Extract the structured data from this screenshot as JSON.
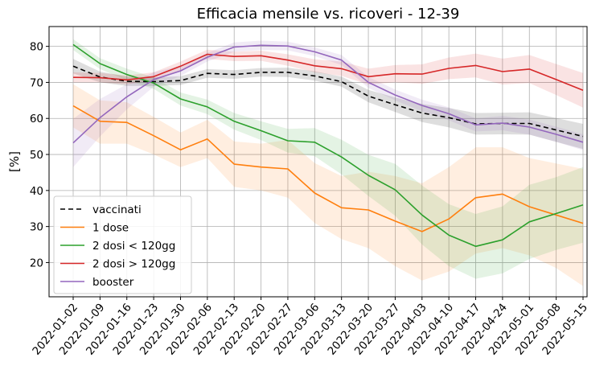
{
  "chart_data": {
    "type": "line",
    "title": "Efficacia mensile vs. ricoveri - 12-39",
    "xlabel": "",
    "ylabel": "[%]",
    "ylim": [
      10.5,
      85.5
    ],
    "yticks": [
      20,
      30,
      40,
      50,
      60,
      70,
      80
    ],
    "grid": true,
    "legend_position": "lower-left",
    "x": [
      "2022-01-02",
      "2022-01-09",
      "2022-01-16",
      "2022-01-23",
      "2022-01-30",
      "2022-02-06",
      "2022-02-13",
      "2022-02-20",
      "2022-02-27",
      "2022-03-06",
      "2022-03-13",
      "2022-03-20",
      "2022-03-27",
      "2022-04-03",
      "2022-04-10",
      "2022-04-17",
      "2022-04-24",
      "2022-05-01",
      "2022-05-08",
      "2022-05-15"
    ],
    "series": [
      {
        "name": "vaccinati",
        "color": "#000000",
        "dash": true,
        "values": [
          74.5,
          71.5,
          70.3,
          70.2,
          70.5,
          72.5,
          72.2,
          72.8,
          72.8,
          71.8,
          70.2,
          66.2,
          63.8,
          61.5,
          60.2,
          58.5,
          58.6,
          58.6,
          56.8,
          55.0
        ],
        "lower": [
          72.5,
          70.0,
          69.0,
          69.0,
          69.3,
          71.3,
          71.0,
          71.6,
          71.5,
          70.5,
          68.8,
          64.5,
          61.8,
          59.0,
          57.5,
          55.5,
          55.6,
          55.5,
          53.5,
          51.5
        ],
        "upper": [
          76.5,
          73.0,
          71.6,
          71.4,
          71.7,
          73.7,
          73.4,
          74.0,
          74.1,
          73.1,
          71.6,
          67.9,
          65.8,
          64.0,
          62.9,
          61.5,
          61.6,
          61.7,
          60.1,
          58.5
        ]
      },
      {
        "name": "1 dose",
        "color": "#ff7f0e",
        "dash": false,
        "values": [
          63.5,
          59.2,
          58.9,
          55.2,
          51.3,
          54.3,
          47.3,
          46.5,
          46.0,
          39.3,
          35.2,
          34.6,
          31.5,
          28.6,
          32.1,
          38.0,
          39.0,
          35.5,
          33.2,
          30.9
        ],
        "lower": [
          57.5,
          53.0,
          53.0,
          50.0,
          46.5,
          49.0,
          41.0,
          40.0,
          38.0,
          31.0,
          26.5,
          24.0,
          19.0,
          15.0,
          17.5,
          22.5,
          24.0,
          22.0,
          18.5,
          13.5
        ],
        "upper": [
          69.5,
          65.0,
          64.5,
          60.4,
          56.1,
          59.6,
          53.6,
          53.0,
          54.0,
          47.6,
          44.0,
          45.2,
          44.0,
          42.0,
          46.5,
          52.0,
          52.0,
          49.0,
          47.5,
          46.0
        ]
      },
      {
        "name": "2 dosi < 120gg",
        "color": "#2ca02c",
        "dash": false,
        "values": [
          80.5,
          75.2,
          72.2,
          69.8,
          65.4,
          63.2,
          59.2,
          56.6,
          53.8,
          53.4,
          49.3,
          44.2,
          40.2,
          33.2,
          27.6,
          24.5,
          26.3,
          31.3,
          33.6,
          36.0
        ],
        "lower": [
          79.0,
          73.7,
          70.6,
          68.2,
          63.6,
          61.2,
          56.9,
          54.0,
          50.5,
          49.5,
          44.5,
          38.5,
          33.0,
          25.0,
          19.0,
          15.5,
          17.0,
          21.0,
          23.5,
          25.5
        ],
        "upper": [
          82.0,
          76.7,
          73.8,
          71.4,
          67.2,
          65.2,
          61.5,
          59.2,
          57.1,
          57.3,
          54.1,
          49.9,
          47.4,
          41.4,
          36.2,
          33.5,
          35.6,
          41.6,
          43.7,
          46.5
        ]
      },
      {
        "name": "2 dosi > 120gg",
        "color": "#d62728",
        "dash": false,
        "values": [
          71.4,
          71.3,
          70.7,
          71.6,
          74.5,
          77.8,
          77.2,
          77.4,
          76.2,
          74.6,
          73.8,
          71.6,
          72.4,
          72.3,
          73.9,
          74.7,
          73.0,
          73.7,
          70.8,
          67.8
        ],
        "lower": [
          70.0,
          70.0,
          69.5,
          70.4,
          73.2,
          76.5,
          75.9,
          76.0,
          74.6,
          72.8,
          71.8,
          69.4,
          70.0,
          69.6,
          70.9,
          71.4,
          69.4,
          69.8,
          66.5,
          63.0
        ],
        "upper": [
          72.8,
          72.6,
          71.9,
          72.8,
          75.8,
          79.1,
          78.5,
          78.8,
          77.8,
          76.4,
          75.8,
          73.8,
          74.8,
          75.0,
          76.9,
          78.0,
          76.6,
          77.6,
          75.1,
          72.6
        ]
      },
      {
        "name": "booster",
        "color": "#9467bd",
        "dash": false,
        "values": [
          53.2,
          60.2,
          66.0,
          70.8,
          73.2,
          77.0,
          79.8,
          80.3,
          80.1,
          78.5,
          76.2,
          70.0,
          66.5,
          63.6,
          61.3,
          58.2,
          58.7,
          57.6,
          55.6,
          53.4
        ],
        "lower": [
          46.5,
          55.0,
          62.5,
          68.8,
          71.8,
          75.8,
          78.5,
          79.0,
          78.9,
          77.3,
          74.8,
          68.5,
          65.0,
          62.0,
          59.5,
          56.4,
          56.7,
          55.5,
          53.5,
          51.2
        ],
        "upper": [
          59.9,
          65.4,
          69.5,
          72.8,
          74.6,
          78.2,
          81.1,
          81.6,
          81.3,
          79.7,
          77.6,
          71.5,
          68.0,
          65.2,
          63.1,
          60.0,
          60.7,
          59.7,
          57.7,
          55.6
        ]
      }
    ]
  }
}
